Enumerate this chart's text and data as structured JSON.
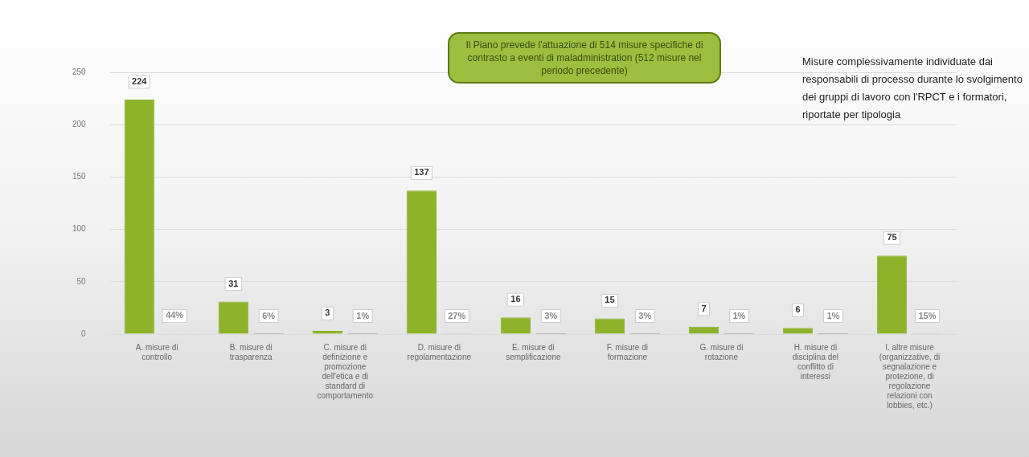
{
  "chart_data": {
    "type": "bar",
    "categories": [
      "A. misure di controllo",
      "B. misure di trasparenza",
      "C. misure di definizione e promozione dell'etica e di standard di comportamento",
      "D. misure di regolamentazione",
      "E. misure di semplificazione",
      "F. misure di formazione",
      "G. misure di rotazione",
      "H. misure di disciplina del conflitto di interessi",
      "I. altre misure (organizzative, di segnalazione e protezione, di regolazione relazioni con lobbies, etc.)"
    ],
    "series": [
      {
        "color": "#8db32b",
        "values": [
          224,
          31,
          3,
          137,
          16,
          15,
          7,
          6,
          75
        ],
        "value_labels": [
          "224",
          "31",
          "3",
          "137",
          "16",
          "15",
          "7",
          "6",
          "75"
        ]
      },
      {
        "color": "#2f3318",
        "values": [
          0.44,
          0.06,
          0.01,
          0.27,
          0.03,
          0.03,
          0.01,
          0.01,
          0.15
        ],
        "value_labels": [
          "44%",
          "6%",
          "1%",
          "27%",
          "3%",
          "3%",
          "1%",
          "1%",
          "15%"
        ]
      }
    ],
    "ylim": [
      0,
      250
    ],
    "yticks": [
      0,
      50,
      100,
      150,
      200,
      250
    ],
    "grid": "y",
    "legend": false,
    "annotations": [
      "Il Piano prevede l'attuazione di 514 misure specifiche di contrasto a eventi di maladministration (512 misure nel periodo precedente)",
      "Misure complessivamente individuate dai responsabili di processo durante lo svolgimento dei gruppi di lavoro con l'RPCT e i formatori, riportate per tipologia"
    ]
  }
}
